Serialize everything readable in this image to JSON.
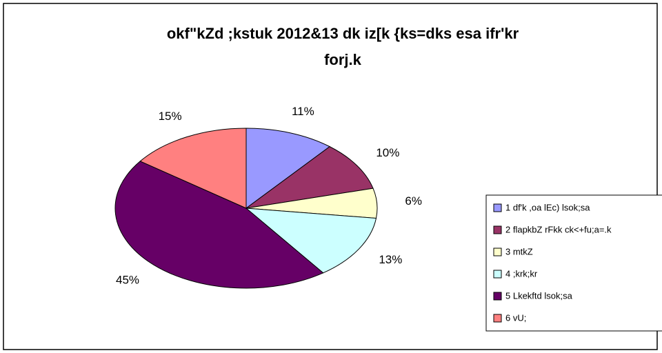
{
  "chart_data": {
    "type": "pie",
    "title": [
      "okf\"kZd ;kstuk 2012&13 dk iz[k {ks=dks esa ifr'kr",
      "forj.k"
    ],
    "categories": [
      "1 df'k ,oa lEc) lsok;sa",
      "2 flapkbZ rFkk ck<+fu;a=.k",
      "3 mtkZ",
      "4 ;krk;kr",
      "5 Lkekftd lsok;sa",
      "6 vU;"
    ],
    "values": [
      11,
      10,
      6,
      13,
      45,
      15
    ],
    "value_labels": [
      "11%",
      "10%",
      "6%",
      "13%",
      "45%",
      "15%"
    ],
    "colors": [
      "#9999ff",
      "#993366",
      "#ffffcc",
      "#ccffff",
      "#660066",
      "#ff8080"
    ],
    "legend": "right"
  }
}
